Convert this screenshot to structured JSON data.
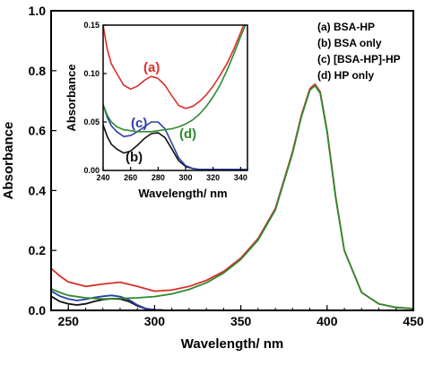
{
  "chart_data": [
    {
      "type": "line",
      "xlabel": "Wavelength/ nm",
      "ylabel": "Absorbance",
      "xlim": [
        240,
        450
      ],
      "ylim": [
        0.0,
        1.0
      ],
      "xticks": [
        "250",
        "300",
        "350",
        "400",
        "450"
      ],
      "xtick_values": [
        250,
        300,
        350,
        400,
        450
      ],
      "yticks": [
        "0.0",
        "0.2",
        "0.4",
        "0.6",
        "0.8",
        "1.0"
      ],
      "ytick_values": [
        0.0,
        0.2,
        0.4,
        0.6,
        0.8,
        1.0
      ],
      "legend": [
        "(a) BSA-HP",
        "(b) BSA only",
        "(c) [BSA-HP]-HP",
        "(d) HP only"
      ],
      "legend_position": "top-right",
      "series": [
        {
          "name": "(a) BSA-HP",
          "color": "#d9302c",
          "x": [
            240,
            245,
            250,
            260,
            270,
            280,
            290,
            300,
            310,
            320,
            330,
            340,
            350,
            360,
            370,
            380,
            385,
            390,
            393,
            396,
            400,
            405,
            410,
            420,
            430,
            440,
            450
          ],
          "y": [
            0.14,
            0.115,
            0.095,
            0.08,
            0.088,
            0.094,
            0.08,
            0.064,
            0.068,
            0.08,
            0.1,
            0.13,
            0.175,
            0.24,
            0.34,
            0.53,
            0.65,
            0.74,
            0.755,
            0.73,
            0.6,
            0.38,
            0.2,
            0.06,
            0.022,
            0.01,
            0.006
          ]
        },
        {
          "name": "(b) BSA only",
          "color": "#111111",
          "x": [
            240,
            245,
            250,
            255,
            260,
            265,
            270,
            275,
            280,
            285,
            290,
            295,
            300,
            305
          ],
          "y": [
            0.047,
            0.03,
            0.022,
            0.018,
            0.022,
            0.03,
            0.036,
            0.039,
            0.038,
            0.03,
            0.015,
            0.005,
            0.002,
            0.001
          ]
        },
        {
          "name": "(c) [BSA-HP]-HP",
          "color": "#2d3fa8",
          "x": [
            240,
            245,
            250,
            255,
            260,
            265,
            270,
            275,
            280,
            285,
            290,
            295,
            300,
            305
          ],
          "y": [
            0.065,
            0.048,
            0.038,
            0.033,
            0.037,
            0.043,
            0.047,
            0.05,
            0.046,
            0.036,
            0.018,
            0.006,
            0.002,
            0.001
          ]
        },
        {
          "name": "(d) HP only",
          "color": "#2e8a2e",
          "x": [
            240,
            245,
            250,
            260,
            270,
            280,
            290,
            300,
            310,
            320,
            330,
            340,
            350,
            360,
            370,
            380,
            385,
            390,
            393,
            396,
            400,
            405,
            410,
            420,
            430,
            440,
            450
          ],
          "y": [
            0.072,
            0.06,
            0.05,
            0.042,
            0.038,
            0.04,
            0.042,
            0.046,
            0.055,
            0.07,
            0.092,
            0.125,
            0.17,
            0.235,
            0.335,
            0.525,
            0.645,
            0.735,
            0.75,
            0.725,
            0.595,
            0.375,
            0.2,
            0.06,
            0.022,
            0.01,
            0.006
          ]
        }
      ]
    },
    {
      "type": "line",
      "role": "inset",
      "xlabel": "Wavelength/ nm",
      "ylabel": "Absorbance",
      "xlim": [
        240,
        345
      ],
      "ylim": [
        0.0,
        0.15
      ],
      "xticks": [
        "240",
        "260",
        "280",
        "300",
        "320",
        "340"
      ],
      "xtick_values": [
        240,
        260,
        280,
        300,
        320,
        340
      ],
      "yticks": [
        "0.00",
        "0.05",
        "0.10",
        "0.15"
      ],
      "ytick_values": [
        0.0,
        0.05,
        0.1,
        0.15
      ],
      "curve_labels": [
        {
          "text": "(a)",
          "series": 0,
          "color": "#d9302c"
        },
        {
          "text": "(b)",
          "series": 1,
          "color": "#111111"
        },
        {
          "text": "(c)",
          "series": 2,
          "color": "#2d3fa8"
        },
        {
          "text": "(d)",
          "series": 3,
          "color": "#2e8a2e"
        }
      ],
      "series": [
        {
          "name": "(a) BSA-HP",
          "color": "#d9302c",
          "x": [
            240,
            243,
            246,
            250,
            255,
            260,
            265,
            270,
            275,
            280,
            285,
            290,
            295,
            300,
            305,
            310,
            315,
            320,
            325,
            330,
            335,
            340,
            345
          ],
          "y": [
            0.15,
            0.125,
            0.11,
            0.1,
            0.088,
            0.084,
            0.087,
            0.093,
            0.097,
            0.095,
            0.088,
            0.077,
            0.067,
            0.064,
            0.066,
            0.071,
            0.078,
            0.087,
            0.098,
            0.11,
            0.125,
            0.142,
            0.16
          ]
        },
        {
          "name": "(b) BSA only",
          "color": "#111111",
          "x": [
            240,
            243,
            246,
            250,
            255,
            260,
            265,
            270,
            275,
            280,
            285,
            290,
            295,
            300,
            305,
            310,
            320,
            330,
            340,
            345
          ],
          "y": [
            0.047,
            0.035,
            0.027,
            0.022,
            0.018,
            0.02,
            0.026,
            0.033,
            0.038,
            0.039,
            0.034,
            0.022,
            0.01,
            0.004,
            0.002,
            0.001,
            0.001,
            0.001,
            0.001,
            0.001
          ]
        },
        {
          "name": "(c) [BSA-HP]-HP",
          "color": "#2d3fa8",
          "x": [
            240,
            243,
            246,
            250,
            255,
            260,
            265,
            270,
            275,
            280,
            285,
            290,
            295,
            300,
            305,
            310,
            320,
            330,
            340,
            345
          ],
          "y": [
            0.068,
            0.055,
            0.046,
            0.04,
            0.035,
            0.036,
            0.04,
            0.045,
            0.05,
            0.05,
            0.043,
            0.028,
            0.013,
            0.005,
            0.002,
            0.001,
            0.001,
            0.001,
            0.001,
            0.001
          ]
        },
        {
          "name": "(d) HP only",
          "color": "#2e8a2e",
          "x": [
            240,
            243,
            246,
            250,
            255,
            260,
            265,
            270,
            275,
            280,
            285,
            290,
            295,
            300,
            305,
            310,
            315,
            320,
            325,
            330,
            335,
            340,
            345
          ],
          "y": [
            0.068,
            0.057,
            0.05,
            0.045,
            0.042,
            0.041,
            0.04,
            0.04,
            0.04,
            0.041,
            0.042,
            0.043,
            0.045,
            0.048,
            0.052,
            0.058,
            0.066,
            0.076,
            0.088,
            0.103,
            0.12,
            0.138,
            0.155
          ]
        }
      ]
    }
  ]
}
